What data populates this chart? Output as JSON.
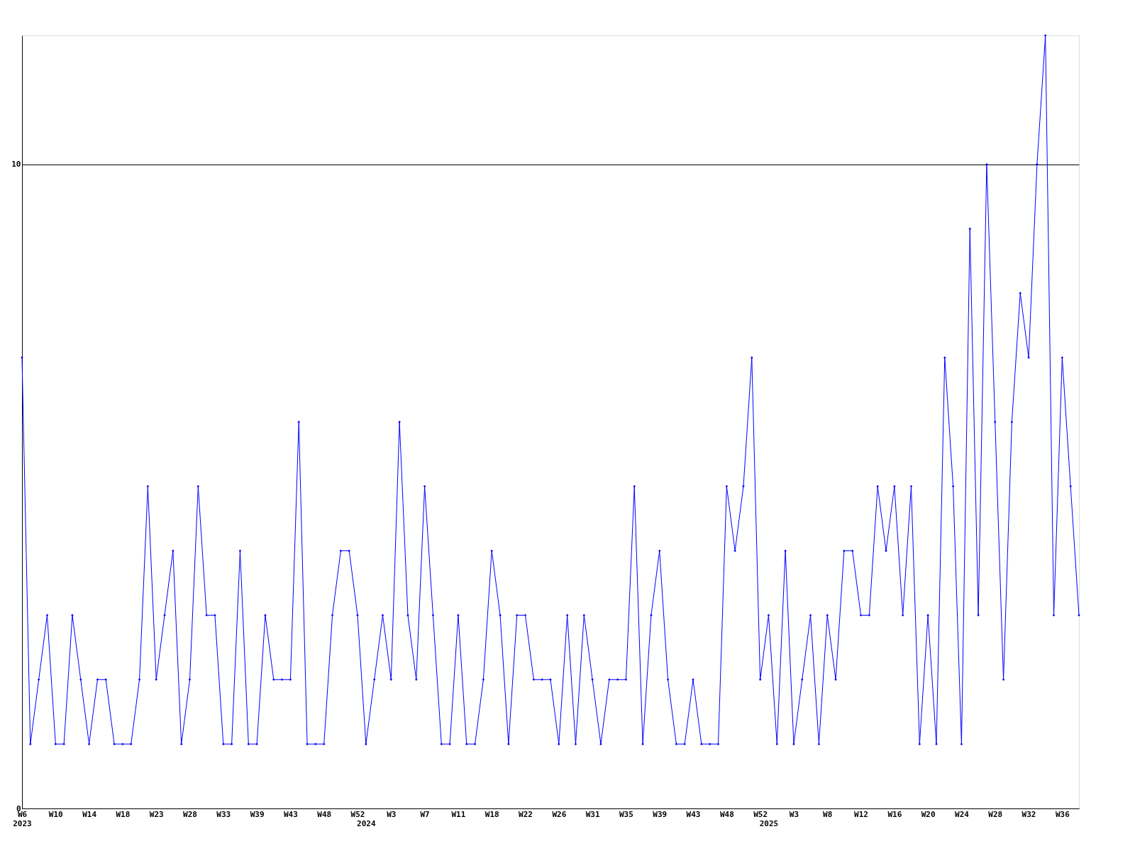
{
  "chart_data": {
    "type": "line",
    "categories": [
      "W6\n2023",
      null,
      null,
      null,
      "W10",
      null,
      null,
      null,
      "W14",
      null,
      null,
      null,
      "W18",
      null,
      null,
      null,
      "W23",
      null,
      null,
      null,
      "W28",
      null,
      null,
      null,
      "W33",
      null,
      null,
      null,
      "W39",
      null,
      null,
      null,
      "W43",
      null,
      null,
      null,
      "W48",
      null,
      null,
      null,
      "W52",
      "\n2024",
      null,
      null,
      "W3",
      null,
      null,
      null,
      "W7",
      null,
      null,
      null,
      "W11",
      null,
      null,
      null,
      "W18",
      null,
      null,
      null,
      "W22",
      null,
      null,
      null,
      "W26",
      null,
      null,
      null,
      "W31",
      null,
      null,
      null,
      "W35",
      null,
      null,
      null,
      "W39",
      null,
      null,
      null,
      "W43",
      null,
      null,
      null,
      "W48",
      null,
      null,
      null,
      "W52",
      "\n2025",
      null,
      null,
      "W3",
      null,
      null,
      null,
      "W8",
      null,
      null,
      null,
      "W12",
      null,
      null,
      null,
      "W16",
      null,
      null,
      null,
      "W20",
      null,
      null,
      null,
      "W24",
      null,
      null,
      null,
      "W28",
      null,
      null,
      null,
      "W32",
      null,
      null,
      null,
      "W36",
      null,
      null
    ],
    "series": [
      {
        "color": "#0000ff",
        "values": [
          7,
          1,
          2,
          3,
          1,
          1,
          3,
          2,
          1,
          2,
          2,
          1,
          1,
          1,
          2,
          5,
          2,
          3,
          4,
          1,
          2,
          5,
          3,
          3,
          1,
          1,
          4,
          1,
          1,
          3,
          2,
          2,
          2,
          6,
          1,
          1,
          1,
          3,
          4,
          4,
          3,
          1,
          2,
          3,
          2,
          6,
          3,
          2,
          5,
          3,
          1,
          1,
          3,
          1,
          1,
          2,
          4,
          3,
          1,
          3,
          3,
          2,
          2,
          2,
          1,
          3,
          1,
          3,
          2,
          1,
          2,
          2,
          2,
          5,
          1,
          3,
          4,
          2,
          1,
          1,
          2,
          1,
          1,
          1,
          5,
          4,
          5,
          7,
          2,
          3,
          1,
          4,
          1,
          2,
          3,
          1,
          3,
          2,
          4,
          4,
          3,
          3,
          5,
          4,
          5,
          3,
          5,
          1,
          3,
          1,
          7,
          5,
          1,
          9,
          3,
          10,
          6,
          2,
          6,
          8,
          7,
          10,
          12,
          3,
          7,
          5,
          3
        ]
      }
    ],
    "ylim": [
      0,
      12
    ],
    "yticks": [
      0,
      10
    ],
    "grid": "y",
    "marker": "diamond",
    "line_style": "solid",
    "legend": false
  }
}
